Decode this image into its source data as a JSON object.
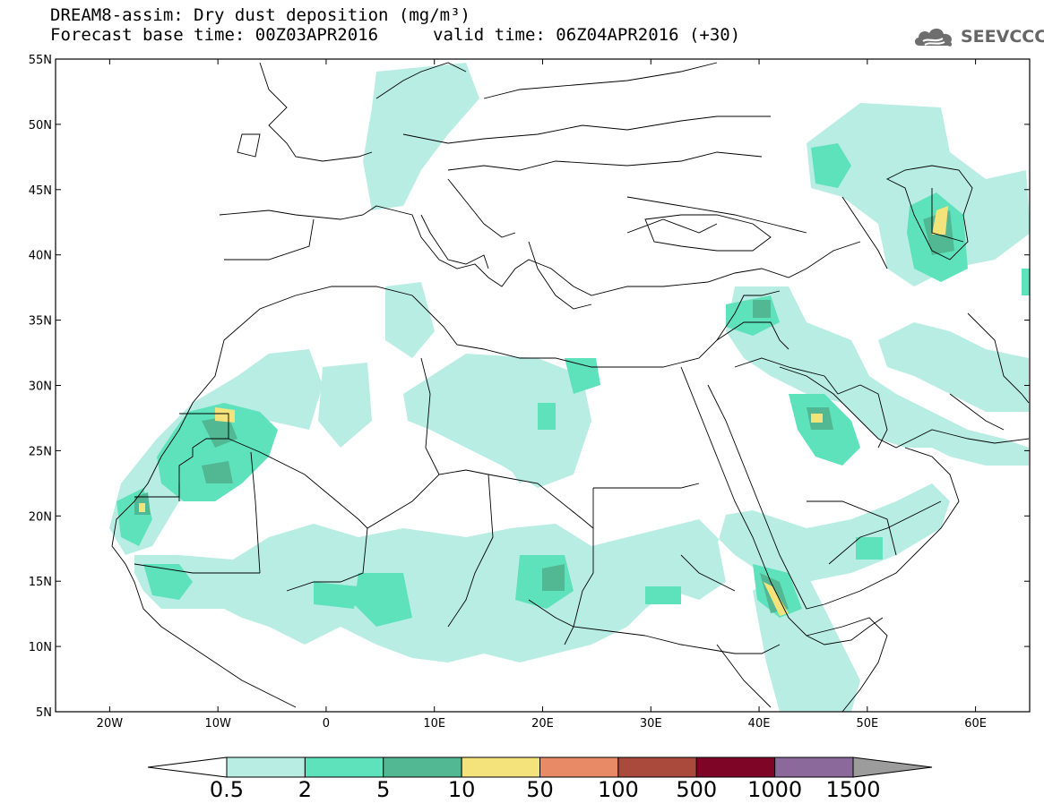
{
  "title": {
    "line1": "DREAM8-assim: Dry dust deposition (mg/m³)",
    "line2a": "Forecast base time: 00Z03APR2016",
    "line2b": "valid time: 06Z04APR2016 (+30)"
  },
  "logo": {
    "text": "SEEVCCC",
    "icon": "cloud-icon"
  },
  "map": {
    "lon_range": [
      -25,
      65
    ],
    "lat_range": [
      5,
      55
    ],
    "lat_ticks": [
      "55N",
      "50N",
      "45N",
      "40N",
      "35N",
      "30N",
      "25N",
      "20N",
      "15N",
      "10N",
      "5N"
    ],
    "lon_ticks": [
      "20W",
      "10W",
      "0",
      "10E",
      "20E",
      "30E",
      "40E",
      "50E",
      "60E"
    ]
  },
  "colorbar": {
    "labels": [
      "0.5",
      "2",
      "5",
      "10",
      "50",
      "100",
      "500",
      "1000",
      "1500"
    ],
    "colors": [
      "#ffffff",
      "#b8ede4",
      "#5ee2bc",
      "#52b893",
      "#f4e37a",
      "#e98a66",
      "#a94a3c",
      "#7e0526",
      "#8b6a9b",
      "#9c9c9c"
    ]
  },
  "legend_levels": {
    "l1": "#b8ede4",
    "l2": "#5ee2bc",
    "l3": "#52b893",
    "l4": "#f4e37a"
  }
}
